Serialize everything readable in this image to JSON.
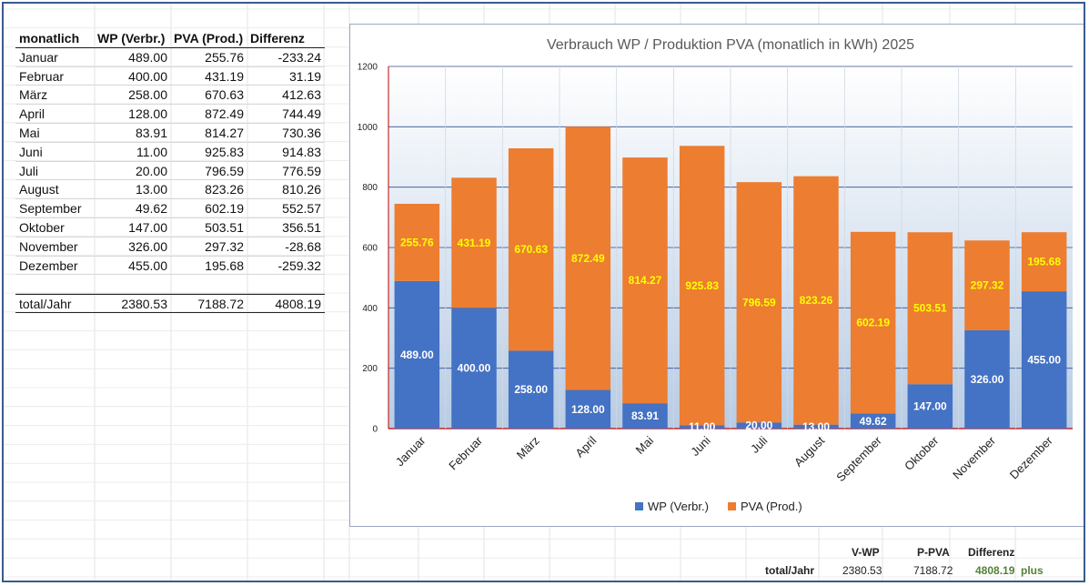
{
  "table": {
    "headers": [
      "monatlich",
      "WP (Verbr.)",
      "PVA (Prod.)",
      "Differenz"
    ],
    "rows": [
      [
        "Januar",
        "489.00",
        "255.76",
        "-233.24"
      ],
      [
        "Februar",
        "400.00",
        "431.19",
        "31.19"
      ],
      [
        "März",
        "258.00",
        "670.63",
        "412.63"
      ],
      [
        "April",
        "128.00",
        "872.49",
        "744.49"
      ],
      [
        "Mai",
        "83.91",
        "814.27",
        "730.36"
      ],
      [
        "Juni",
        "11.00",
        "925.83",
        "914.83"
      ],
      [
        "Juli",
        "20.00",
        "796.59",
        "776.59"
      ],
      [
        "August",
        "13.00",
        "823.26",
        "810.26"
      ],
      [
        "September",
        "49.62",
        "602.19",
        "552.57"
      ],
      [
        "Oktober",
        "147.00",
        "503.51",
        "356.51"
      ],
      [
        "November",
        "326.00",
        "297.32",
        "-28.68"
      ],
      [
        "Dezember",
        "455.00",
        "195.68",
        "-259.32"
      ]
    ],
    "total": [
      "total/Jahr",
      "2380.53",
      "7188.72",
      "4808.19"
    ]
  },
  "chart_data": {
    "type": "bar",
    "stacked": true,
    "title": "Verbrauch WP / Produktion PVA (monatlich in kWh) 2025",
    "categories": [
      "Januar",
      "Februar",
      "März",
      "April",
      "Mai",
      "Juni",
      "Juli",
      "August",
      "September",
      "Oktober",
      "November",
      "Dezember"
    ],
    "series": [
      {
        "name": "WP (Verbr.)",
        "color": "#4472C4",
        "label_color": "#ffffff",
        "values": [
          489.0,
          400.0,
          258.0,
          128.0,
          83.91,
          11.0,
          20.0,
          13.0,
          49.62,
          147.0,
          326.0,
          455.0
        ]
      },
      {
        "name": "PVA (Prod.)",
        "color": "#ED7D31",
        "label_color": "#FFFF00",
        "values": [
          255.76,
          431.19,
          670.63,
          872.49,
          814.27,
          925.83,
          796.59,
          823.26,
          602.19,
          503.51,
          297.32,
          195.68
        ]
      }
    ],
    "ylim": [
      0,
      1200
    ],
    "yticks": [
      0,
      200,
      400,
      600,
      800,
      1000,
      1200
    ],
    "legend": "bottom",
    "xlabel": "",
    "ylabel": ""
  },
  "summary": {
    "headers": [
      "V-WP",
      "P-PVA",
      "Differenz"
    ],
    "label": "total/Jahr",
    "values": [
      "2380.53",
      "7188.72",
      "4808.19"
    ],
    "status": "plus",
    "status_color": "#548235"
  }
}
